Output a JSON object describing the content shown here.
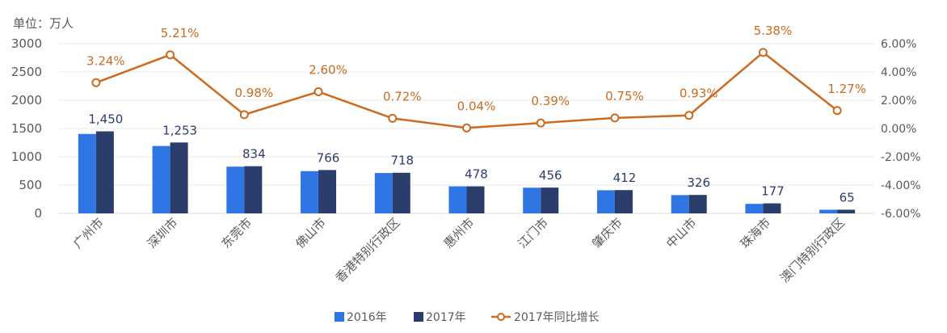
{
  "chart_data": {
    "type": "bar+line",
    "unit_label": "单位：万人",
    "categories": [
      "广州市",
      "深圳市",
      "东莞市",
      "佛山市",
      "香港特别行政区",
      "惠州市",
      "江门市",
      "肇庆市",
      "中山市",
      "珠海市",
      "澳门特别行政区"
    ],
    "series": [
      {
        "name": "2016年",
        "type": "bar",
        "axis": "left",
        "color": "#2f76e4",
        "values": [
          1404,
          1191,
          826,
          747,
          713,
          478,
          454,
          409,
          323,
          168,
          64
        ]
      },
      {
        "name": "2017年",
        "type": "bar",
        "axis": "left",
        "color": "#2b3d6b",
        "values": [
          1450,
          1253,
          834,
          766,
          718,
          478,
          456,
          412,
          326,
          177,
          65
        ],
        "data_labels": [
          "1,450",
          "1,253",
          "834",
          "766",
          "718",
          "478",
          "456",
          "412",
          "326",
          "177",
          "65"
        ]
      },
      {
        "name": "2017年同比增长",
        "type": "line",
        "axis": "right",
        "color": "#cc6b1f",
        "values": [
          3.24,
          5.21,
          0.98,
          2.6,
          0.72,
          0.04,
          0.39,
          0.75,
          0.93,
          5.38,
          1.27
        ],
        "data_labels": [
          "3.24%",
          "5.21%",
          "0.98%",
          "2.60%",
          "0.72%",
          "0.04%",
          "0.39%",
          "0.75%",
          "0.93%",
          "5.38%",
          "1.27%"
        ]
      }
    ],
    "y_left": {
      "range": [
        0,
        3000
      ],
      "ticks": [
        "0",
        "500",
        "1000",
        "1500",
        "2000",
        "2500",
        "3000"
      ]
    },
    "y_right": {
      "range": [
        -6,
        6
      ],
      "ticks": [
        "-6.00%",
        "-4.00%",
        "-2.00%",
        "0.00%",
        "2.00%",
        "4.00%",
        "6.00%"
      ]
    },
    "grid": true,
    "legend_position": "bottom"
  }
}
